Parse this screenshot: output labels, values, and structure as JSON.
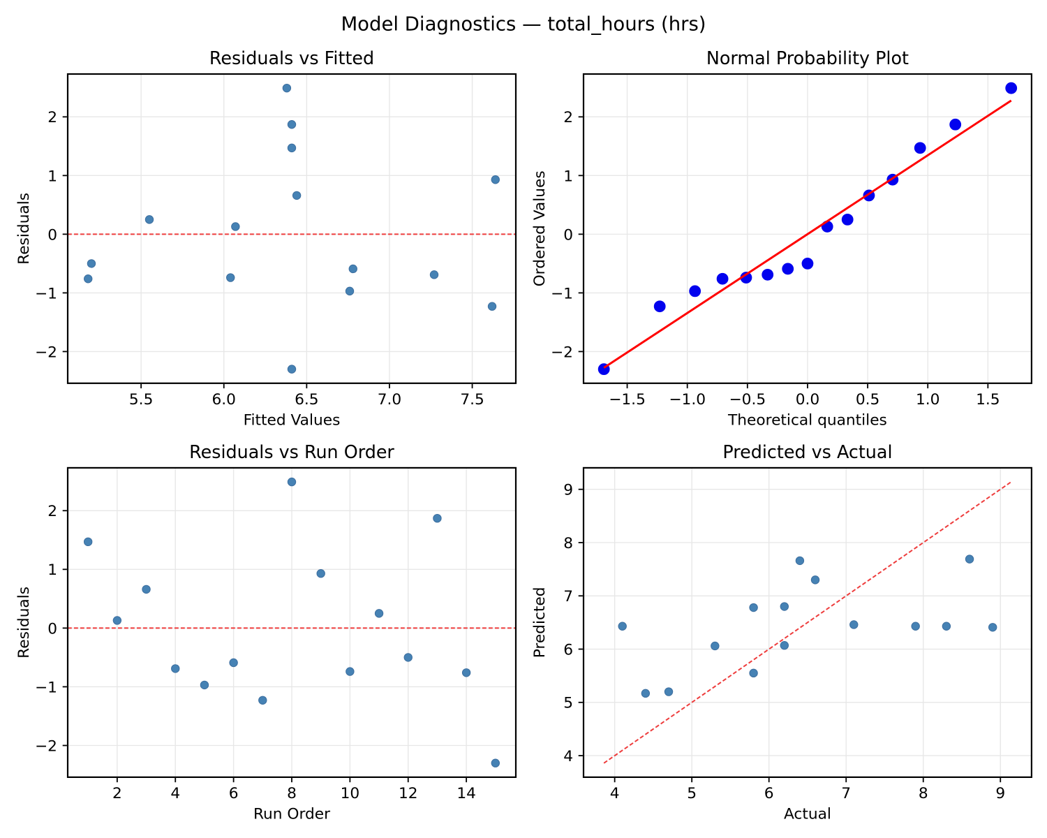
{
  "figure": {
    "suptitle": "Model Diagnostics — total_hours (hrs)",
    "background_color": "#ffffff",
    "text_color": "#000000",
    "grid_color": "#e7e7e7",
    "spine_color": "#000000"
  },
  "chart_data": [
    {
      "id": "residuals-vs-fitted",
      "type": "scatter",
      "title": "Residuals vs Fitted",
      "xlabel": "Fitted Values",
      "ylabel": "Residuals",
      "xlim": [
        5.0568,
        7.7632
      ],
      "ylim": [
        -2.54,
        2.73
      ],
      "grid": true,
      "xticks": {
        "values": [
          5.5,
          6.0,
          6.5,
          7.0,
          7.5
        ],
        "labels": [
          "5.5",
          "6.0",
          "6.5",
          "7.0",
          "7.5"
        ]
      },
      "yticks": {
        "values": [
          -2,
          -1,
          0,
          1,
          2
        ],
        "labels": [
          "−2",
          "−1",
          "0",
          "1",
          "2"
        ]
      },
      "points": {
        "x": [
          6.41,
          6.07,
          6.44,
          7.27,
          6.76,
          6.78,
          7.62,
          6.38,
          7.64,
          6.04,
          5.55,
          5.2,
          6.41,
          5.18,
          6.41
        ],
        "y": [
          1.47,
          0.13,
          0.66,
          -0.69,
          -0.97,
          -0.59,
          -1.23,
          2.49,
          0.93,
          -0.74,
          0.25,
          -0.5,
          1.87,
          -0.76,
          -2.3
        ],
        "color": "#4682b4",
        "edge_color": "#3c6e9f",
        "radius": 5.7
      },
      "lines": [
        {
          "name": "zero-reference-line",
          "x": [
            5.057,
            7.763
          ],
          "y": [
            0,
            0
          ],
          "color": "#ee3c3c",
          "width": 2,
          "dash": "5.8 3.2"
        }
      ]
    },
    {
      "id": "normal-probability-plot",
      "type": "scatter",
      "title": "Normal Probability Plot",
      "xlabel": "Theoretical quantiles",
      "ylabel": "Ordered Values",
      "xlim": [
        -1.8631,
        1.8631
      ],
      "ylim": [
        -2.54,
        2.73
      ],
      "grid": true,
      "xticks": {
        "values": [
          -1.5,
          -1.0,
          -0.5,
          0.0,
          0.5,
          1.0,
          1.5
        ],
        "labels": [
          "−1.5",
          "−1.0",
          "−0.5",
          "0.0",
          "0.5",
          "1.0",
          "1.5"
        ]
      },
      "yticks": {
        "values": [
          -2,
          -1,
          0,
          1,
          2
        ],
        "labels": [
          "−2",
          "−1",
          "0",
          "1",
          "2"
        ]
      },
      "points": {
        "x": [
          -1.6937,
          -1.2292,
          -0.9362,
          -0.7074,
          -0.5108,
          -0.3323,
          -0.1639,
          0.0,
          0.1639,
          0.3323,
          0.5108,
          0.7074,
          0.9362,
          1.2292,
          1.6937
        ],
        "y": [
          -2.3,
          -1.23,
          -0.97,
          -0.76,
          -0.74,
          -0.69,
          -0.59,
          -0.5,
          0.13,
          0.25,
          0.66,
          0.93,
          1.47,
          1.87,
          2.49
        ],
        "color": "#0202ee",
        "edge_color": "#0202ee",
        "radius": 7.9
      },
      "lines": [
        {
          "name": "normal-fit-line",
          "x": [
            -1.6937,
            1.6937
          ],
          "y": [
            -2.276,
            2.278
          ],
          "color": "#ff0000",
          "width": 3
        }
      ]
    },
    {
      "id": "residuals-vs-run-order",
      "type": "scatter",
      "title": "Residuals vs Run Order",
      "xlabel": "Run Order",
      "ylabel": "Residuals",
      "xlim": [
        0.3,
        15.7
      ],
      "ylim": [
        -2.54,
        2.73
      ],
      "grid": true,
      "xticks": {
        "values": [
          2,
          4,
          6,
          8,
          10,
          12,
          14
        ],
        "labels": [
          "2",
          "4",
          "6",
          "8",
          "10",
          "12",
          "14"
        ]
      },
      "yticks": {
        "values": [
          -2,
          -1,
          0,
          1,
          2
        ],
        "labels": [
          "−2",
          "−1",
          "0",
          "1",
          "2"
        ]
      },
      "points": {
        "x": [
          1,
          2,
          3,
          4,
          5,
          6,
          7,
          8,
          9,
          10,
          11,
          12,
          13,
          14,
          15
        ],
        "y": [
          1.47,
          0.13,
          0.66,
          -0.69,
          -0.97,
          -0.59,
          -1.23,
          2.49,
          0.93,
          -0.74,
          0.25,
          -0.5,
          1.87,
          -0.76,
          -2.3
        ],
        "color": "#4682b4",
        "edge_color": "#3c6e9f",
        "radius": 5.7
      },
      "lines": [
        {
          "name": "zero-reference-line",
          "x": [
            0.3,
            15.7
          ],
          "y": [
            0,
            0
          ],
          "color": "#ee3c3c",
          "width": 2,
          "dash": "5.8 3.2"
        }
      ]
    },
    {
      "id": "predicted-vs-actual",
      "type": "scatter",
      "title": "Predicted vs Actual",
      "xlabel": "Actual",
      "ylabel": "Predicted",
      "xlim": [
        3.596,
        9.404
      ],
      "ylim": [
        3.596,
        9.404
      ],
      "grid": true,
      "xticks": {
        "values": [
          4,
          5,
          6,
          7,
          8,
          9
        ],
        "labels": [
          "4",
          "5",
          "6",
          "7",
          "8",
          "9"
        ]
      },
      "yticks": {
        "values": [
          4,
          5,
          6,
          7,
          8,
          9
        ],
        "labels": [
          "4",
          "5",
          "6",
          "7",
          "8",
          "9"
        ]
      },
      "points": {
        "x": [
          7.9,
          6.2,
          7.1,
          6.6,
          5.8,
          6.2,
          6.4,
          8.9,
          8.6,
          5.3,
          5.8,
          4.7,
          8.3,
          4.4,
          4.1
        ],
        "y": [
          6.43,
          6.07,
          6.46,
          7.3,
          6.78,
          6.8,
          7.66,
          6.41,
          7.69,
          6.06,
          5.55,
          5.2,
          6.43,
          5.17,
          6.43
        ],
        "color": "#4682b4",
        "edge_color": "#3c6e9f",
        "radius": 5.7
      },
      "lines": [
        {
          "name": "identity-line",
          "x": [
            3.86,
            9.14
          ],
          "y": [
            3.86,
            9.14
          ],
          "color": "#ee3c3c",
          "width": 2,
          "dash": "5.8 3.2"
        }
      ]
    }
  ]
}
